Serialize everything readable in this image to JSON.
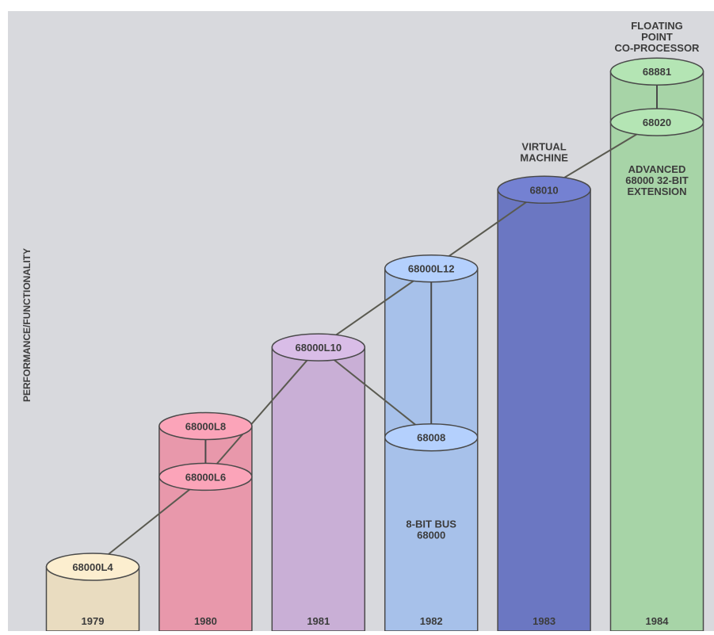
{
  "background_color": "#d8d9dd",
  "frame_color": "#ffffff",
  "outline_color": "#4a4a4a",
  "connector_color": "#5a5a50",
  "text_color": "#3c3c3c",
  "chart_data": {
    "type": "bar",
    "title": "",
    "xlabel": "",
    "ylabel": "PERFORMANCE/FUNCTIONALITY",
    "categories": [
      "1979",
      "1980",
      "1981",
      "1982",
      "1983",
      "1984"
    ],
    "value_unit": "relative performance/functionality (unscaled)",
    "ylim": [
      0,
      10
    ],
    "grid": false,
    "legend": "none",
    "columns": [
      {
        "year": "1979",
        "color": "#e9dcc0",
        "top_value": 1.0,
        "chips": [
          {
            "name": "68000L4",
            "value": 1.0
          }
        ],
        "annotations": []
      },
      {
        "year": "1980",
        "color": "#e898ab",
        "top_value": 3.5,
        "chips": [
          {
            "name": "68000L8",
            "value": 3.5
          },
          {
            "name": "68000L6",
            "value": 2.6
          }
        ],
        "annotations": []
      },
      {
        "year": "1981",
        "color": "#c9afd6",
        "top_value": 4.9,
        "chips": [
          {
            "name": "68000L10",
            "value": 4.9
          }
        ],
        "annotations": []
      },
      {
        "year": "1982",
        "color": "#a7c1ea",
        "top_value": 6.3,
        "chips": [
          {
            "name": "68000L12",
            "value": 6.3
          },
          {
            "name": "68008",
            "value": 3.3
          }
        ],
        "annotations": [
          {
            "lines": [
              "8-BIT BUS",
              "68000"
            ],
            "value": 1.7
          }
        ]
      },
      {
        "year": "1983",
        "color": "#6b77c2",
        "top_value": 7.7,
        "chips": [
          {
            "name": "68010",
            "value": 7.7
          }
        ],
        "annotations": [
          {
            "lines": [
              "VIRTUAL",
              "MACHINE"
            ],
            "value": 8.4
          }
        ]
      },
      {
        "year": "1984",
        "color": "#a7d4a7",
        "top_value": 9.8,
        "chips": [
          {
            "name": "68881",
            "value": 9.8
          },
          {
            "name": "68020",
            "value": 8.9
          }
        ],
        "annotations": [
          {
            "lines": [
              "FLOATING",
              "POINT",
              "CO-PROCESSOR"
            ],
            "value": 10.55
          },
          {
            "lines": [
              "ADVANCED",
              "68000 32-BIT",
              "EXTENSION"
            ],
            "value": 8.0
          }
        ]
      }
    ],
    "connections": [
      [
        "68000L4",
        "68000L6"
      ],
      [
        "68000L6",
        "68000L8"
      ],
      [
        "68000L6",
        "68000L10"
      ],
      [
        "68000L10",
        "68008"
      ],
      [
        "68000L10",
        "68000L12"
      ],
      [
        "68000L12",
        "68010"
      ],
      [
        "68010",
        "68020"
      ],
      [
        "68020",
        "68881"
      ]
    ]
  }
}
